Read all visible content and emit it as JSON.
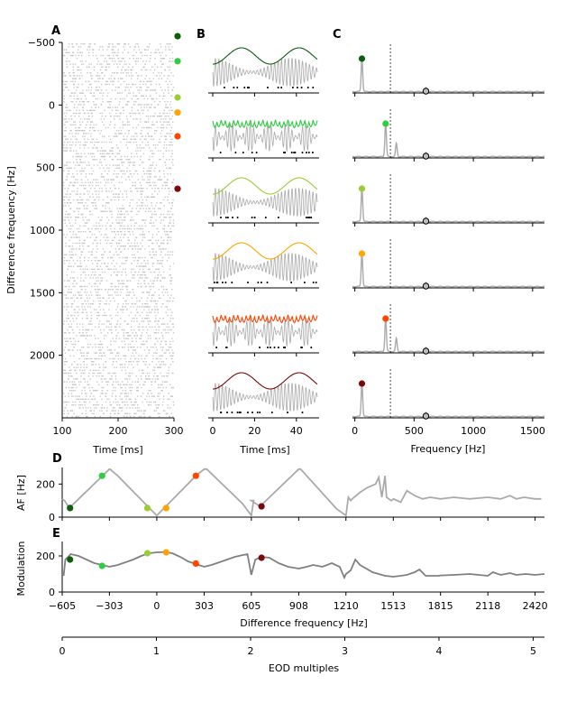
{
  "colors": {
    "series": [
      "#0b5e0b",
      "#2ecc40",
      "#9acd32",
      "#ffa500",
      "#ff4500",
      "#7a0a0a"
    ],
    "gray": "#aaaaaa",
    "dark_gray": "#808080",
    "raster": "#c8c8c8"
  },
  "panel_labels": {
    "a": "A",
    "b": "B",
    "c": "C",
    "d": "D",
    "e": "E"
  },
  "chart_data": [
    {
      "panel": "A",
      "type": "scatter",
      "description_source": "spike raster of many neurons vs time, y = difference frequency",
      "xlabel": "Time [ms]",
      "ylabel": "Difference frequency [Hz]",
      "xlim": [
        100,
        300
      ],
      "ylim": [
        2500,
        -500
      ],
      "xticks": [
        "100",
        "200",
        "300"
      ],
      "yticks": [
        "−500",
        "0",
        "500",
        "1000",
        "1500",
        "2000"
      ],
      "ytick_values": [
        -500,
        0,
        500,
        1000,
        1500,
        2000
      ],
      "xtick_values": [
        100,
        200,
        300
      ],
      "markers_df": [
        -550,
        -350,
        -60,
        60,
        250,
        670
      ]
    },
    {
      "panel": "B",
      "type": "line",
      "xlabel": "Time [ms]",
      "xlim": [
        0,
        50
      ],
      "xticks": [
        "0",
        "20",
        "40"
      ],
      "xtick_values": [
        0,
        20,
        40
      ],
      "rows": [
        {
          "beat_hz": 60
        },
        {
          "beat_hz": 250
        },
        {
          "beat_hz": 55
        },
        {
          "beat_hz": 60
        },
        {
          "beat_hz": 250
        },
        {
          "beat_hz": 60
        }
      ]
    },
    {
      "panel": "C",
      "type": "line",
      "xlabel": "Frequency [Hz]",
      "xlim": [
        -20,
        1600
      ],
      "xticks": [
        "0",
        "500",
        "1000",
        "1500"
      ],
      "xtick_values": [
        0,
        500,
        1000,
        1500
      ],
      "eod_line_hz": 300,
      "rows": [
        {
          "peak_hz": 60,
          "eod_hz": 600
        },
        {
          "peak_hz": 260,
          "eod_hz": 600
        },
        {
          "peak_hz": 60,
          "eod_hz": 600
        },
        {
          "peak_hz": 60,
          "eod_hz": 600
        },
        {
          "peak_hz": 260,
          "eod_hz": 600
        },
        {
          "peak_hz": 60,
          "eod_hz": 600
        }
      ]
    },
    {
      "panel": "D",
      "type": "line",
      "ylabel": "AF [Hz]",
      "ylim": [
        0,
        300
      ],
      "yticks": [
        "0",
        "200"
      ],
      "ytick_values": [
        0,
        200
      ],
      "points": [
        [
          -605,
          110
        ],
        [
          -590,
          100
        ],
        [
          -560,
          55
        ],
        [
          -303,
          290
        ],
        [
          -300,
          290
        ],
        [
          -250,
          250
        ],
        [
          0,
          10
        ],
        [
          250,
          250
        ],
        [
          303,
          290
        ],
        [
          320,
          290
        ],
        [
          550,
          80
        ],
        [
          605,
          10
        ],
        [
          620,
          100
        ],
        [
          605,
          100
        ],
        [
          660,
          65
        ],
        [
          908,
          290
        ],
        [
          920,
          290
        ],
        [
          1150,
          50
        ],
        [
          1210,
          10
        ],
        [
          1225,
          120
        ],
        [
          1240,
          100
        ],
        [
          1250,
          110
        ],
        [
          1300,
          150
        ],
        [
          1350,
          180
        ],
        [
          1400,
          200
        ],
        [
          1420,
          240
        ],
        [
          1440,
          120
        ],
        [
          1460,
          250
        ],
        [
          1470,
          120
        ],
        [
          1500,
          100
        ],
        [
          1515,
          110
        ],
        [
          1560,
          90
        ],
        [
          1600,
          160
        ],
        [
          1650,
          130
        ],
        [
          1700,
          110
        ],
        [
          1750,
          120
        ],
        [
          1815,
          110
        ],
        [
          1900,
          120
        ],
        [
          2000,
          110
        ],
        [
          2118,
          120
        ],
        [
          2200,
          110
        ],
        [
          2260,
          130
        ],
        [
          2300,
          110
        ],
        [
          2350,
          120
        ],
        [
          2420,
          110
        ],
        [
          2460,
          110
        ]
      ],
      "markers": [
        {
          "x": -555,
          "y": 55
        },
        {
          "x": -350,
          "y": 250
        },
        {
          "x": -60,
          "y": 55
        },
        {
          "x": 60,
          "y": 55
        },
        {
          "x": 250,
          "y": 250
        },
        {
          "x": 670,
          "y": 65
        }
      ]
    },
    {
      "panel": "E",
      "type": "line",
      "ylabel": "Modulation",
      "xlabel": "Difference frequency [Hz]",
      "xlim": [
        -605,
        2480
      ],
      "ylim": [
        0,
        280
      ],
      "yticks": [
        "0",
        "200"
      ],
      "ytick_values": [
        0,
        200
      ],
      "xticks": [
        "−605",
        "−303",
        "0",
        "303",
        "605",
        "908",
        "1210",
        "1513",
        "1815",
        "2118",
        "2420"
      ],
      "xtick_values": [
        -605,
        -303,
        0,
        303,
        605,
        908,
        1210,
        1513,
        1815,
        2118,
        2420
      ],
      "points": [
        [
          -605,
          100
        ],
        [
          -595,
          95
        ],
        [
          -585,
          180
        ],
        [
          -550,
          210
        ],
        [
          -500,
          200
        ],
        [
          -450,
          180
        ],
        [
          -400,
          160
        ],
        [
          -350,
          150
        ],
        [
          -303,
          140
        ],
        [
          -250,
          150
        ],
        [
          -200,
          165
        ],
        [
          -150,
          180
        ],
        [
          -100,
          200
        ],
        [
          -50,
          215
        ],
        [
          0,
          220
        ],
        [
          50,
          222
        ],
        [
          100,
          215
        ],
        [
          150,
          195
        ],
        [
          200,
          170
        ],
        [
          250,
          155
        ],
        [
          303,
          140
        ],
        [
          350,
          150
        ],
        [
          400,
          165
        ],
        [
          450,
          180
        ],
        [
          500,
          195
        ],
        [
          550,
          205
        ],
        [
          580,
          210
        ],
        [
          605,
          95
        ],
        [
          630,
          180
        ],
        [
          670,
          195
        ],
        [
          720,
          190
        ],
        [
          780,
          160
        ],
        [
          840,
          140
        ],
        [
          908,
          130
        ],
        [
          960,
          140
        ],
        [
          1000,
          150
        ],
        [
          1060,
          140
        ],
        [
          1120,
          160
        ],
        [
          1170,
          140
        ],
        [
          1200,
          80
        ],
        [
          1210,
          100
        ],
        [
          1240,
          120
        ],
        [
          1270,
          180
        ],
        [
          1300,
          150
        ],
        [
          1340,
          130
        ],
        [
          1380,
          110
        ],
        [
          1420,
          100
        ],
        [
          1460,
          90
        ],
        [
          1513,
          85
        ],
        [
          1560,
          90
        ],
        [
          1600,
          95
        ],
        [
          1650,
          110
        ],
        [
          1680,
          125
        ],
        [
          1720,
          90
        ],
        [
          1800,
          90
        ],
        [
          1815,
          92
        ],
        [
          1900,
          95
        ],
        [
          2000,
          100
        ],
        [
          2060,
          95
        ],
        [
          2118,
          90
        ],
        [
          2150,
          110
        ],
        [
          2200,
          95
        ],
        [
          2260,
          105
        ],
        [
          2300,
          95
        ],
        [
          2360,
          100
        ],
        [
          2420,
          95
        ],
        [
          2480,
          100
        ]
      ],
      "markers": [
        {
          "x": -555,
          "y": 180
        },
        {
          "x": -350,
          "y": 145
        },
        {
          "x": -60,
          "y": 215
        },
        {
          "x": 60,
          "y": 220
        },
        {
          "x": 250,
          "y": 158
        },
        {
          "x": 670,
          "y": 190
        }
      ]
    },
    {
      "panel": "EOD",
      "type": "line",
      "xlabel": "EOD multiples",
      "xlim": [
        0,
        5.12
      ],
      "xticks": [
        "0",
        "1",
        "2",
        "3",
        "4",
        "5"
      ],
      "xtick_values": [
        0,
        1,
        2,
        3,
        4,
        5
      ]
    }
  ]
}
